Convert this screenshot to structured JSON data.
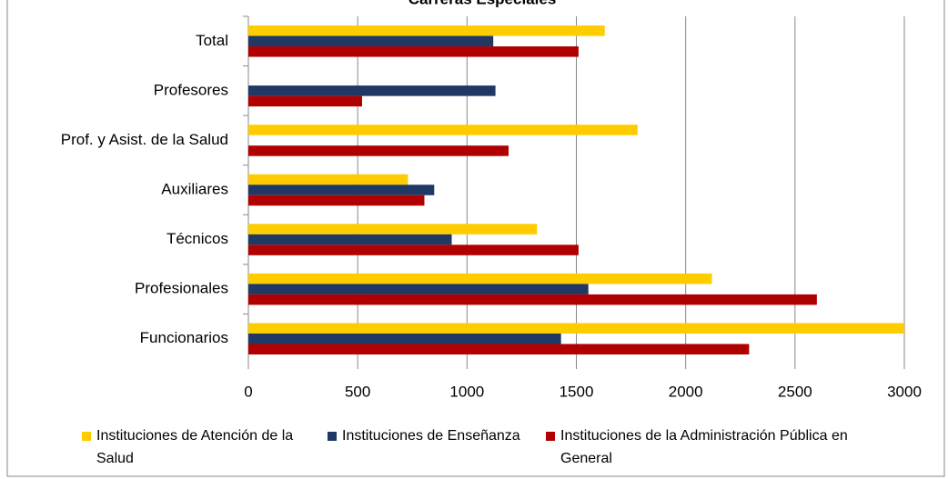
{
  "chart_data": {
    "type": "bar",
    "orientation": "horizontal",
    "title": "Carreras Especiales",
    "categories": [
      "Total",
      "Profesores",
      "Prof. y Asist. de la Salud",
      "Auxiliares",
      "Técnicos",
      "Profesionales",
      "Funcionarios"
    ],
    "series": [
      {
        "name": "Instituciones de Atención de la Salud",
        "color": "#ffcc00",
        "values": [
          1630,
          null,
          1780,
          730,
          1320,
          2120,
          3000
        ]
      },
      {
        "name": "Instituciones de Enseñanza",
        "color": "#1f3864",
        "values": [
          1120,
          1130,
          null,
          850,
          930,
          1555,
          1430
        ]
      },
      {
        "name": "Instituciones de la Administración Pública en General",
        "color": "#b00000",
        "values": [
          1510,
          520,
          1190,
          805,
          1510,
          2600,
          2290
        ]
      }
    ],
    "xlim": [
      0,
      3000
    ],
    "xticks": [
      0,
      500,
      1000,
      1500,
      2000,
      2500,
      3000
    ],
    "grid": true,
    "legend": "bottom"
  }
}
